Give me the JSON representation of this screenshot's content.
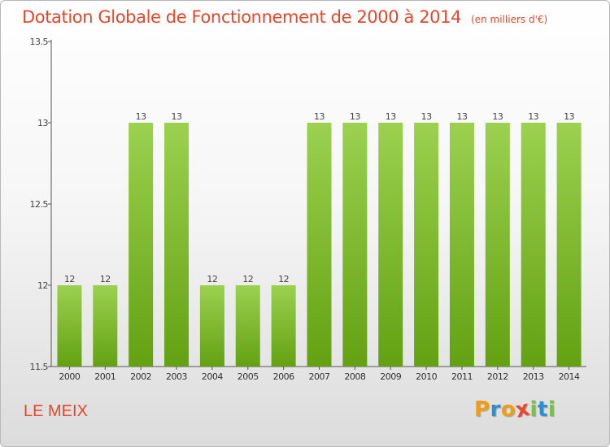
{
  "chart_data": {
    "type": "bar",
    "title": "Dotation Globale de Fonctionnement de 2000 à 2014",
    "subtitle": "(en milliers d'€)",
    "categories": [
      "2000",
      "2001",
      "2002",
      "2003",
      "2004",
      "2005",
      "2006",
      "2007",
      "2008",
      "2009",
      "2010",
      "2011",
      "2012",
      "2013",
      "2014"
    ],
    "values": [
      12,
      12,
      13,
      13,
      12,
      12,
      12,
      13,
      13,
      13,
      13,
      13,
      13,
      13,
      13
    ],
    "data_labels": [
      "12",
      "12",
      "13",
      "13",
      "12",
      "12",
      "12",
      "13",
      "13",
      "13",
      "13",
      "13",
      "13",
      "13",
      "13"
    ],
    "yticks": [
      "11.5",
      "12",
      "12.5",
      "13",
      "13.5"
    ],
    "ylim": [
      11.5,
      13.5
    ],
    "grid": false,
    "legend": "none",
    "bar_color_top": "#9bd14f",
    "bar_color_bottom": "#63a112"
  },
  "footer": {
    "commune": "LE MEIX",
    "logo_letters": [
      "P",
      "r",
      "o",
      "x",
      "i",
      "t",
      "i"
    ],
    "logo_colors": [
      "#f39c12",
      "#2b8fd6",
      "#f39c12",
      "#e84a2b",
      "#7cc242",
      "#2b8fd6",
      "#7cc242"
    ]
  }
}
